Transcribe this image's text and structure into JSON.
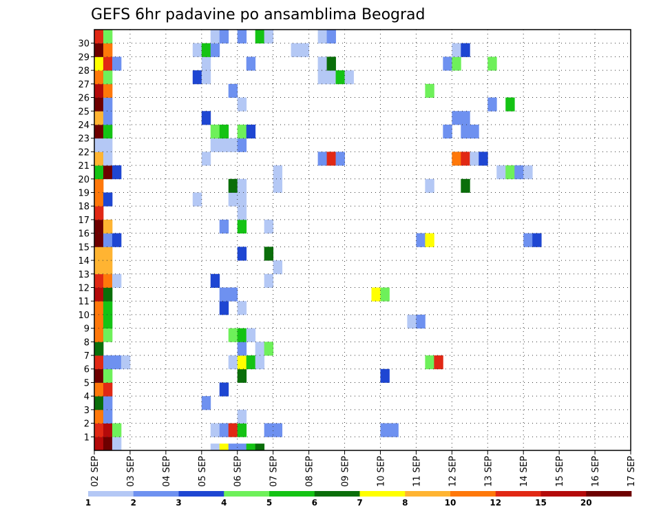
{
  "chart_data": {
    "type": "heatmap",
    "title": "GEFS 6hr padavine po ansamblima Beograd",
    "x_tick_labels": [
      "02 SEP",
      "03 SEP",
      "04 SEP",
      "05 SEP",
      "06 SEP",
      "07 SEP",
      "08 SEP",
      "09 SEP",
      "10 SEP",
      "11 SEP",
      "12 SEP",
      "13 SEP",
      "14 SEP",
      "15 SEP",
      "16 SEP",
      "17 SEP"
    ],
    "y_tick_labels": [
      "1",
      "2",
      "3",
      "4",
      "5",
      "6",
      "7",
      "8",
      "9",
      "10",
      "11",
      "12",
      "13",
      "14",
      "15",
      "16",
      "17",
      "18",
      "19",
      "20",
      "21",
      "22",
      "23",
      "24",
      "25",
      "26",
      "27",
      "28",
      "29",
      "30"
    ],
    "time_steps_per_day": 4,
    "xlim": [
      0,
      60
    ],
    "ylim": [
      0,
      30
    ],
    "grid": "dotted",
    "colorbar": {
      "position": "bottom",
      "labels": [
        "1",
        "2",
        "3",
        "4",
        "5",
        "6",
        "7",
        "8",
        "10",
        "12",
        "15",
        "20"
      ],
      "colors": [
        "#b4c8f5",
        "#6e91f0",
        "#1e46d2",
        "#6ef05a",
        "#14c314",
        "#0a6e0a",
        "#ffff00",
        "#ffb432",
        "#ff780a",
        "#e12814",
        "#b40a0a",
        "#6e0000"
      ]
    },
    "bins": [
      "1",
      "2",
      "3",
      "4",
      "5",
      "6",
      "7",
      "8",
      "10",
      "12",
      "15",
      "20"
    ],
    "cells": [
      [
        0,
        0,
        10
      ],
      [
        1,
        0,
        11
      ],
      [
        2,
        0,
        0
      ],
      [
        0,
        1,
        9
      ],
      [
        1,
        1,
        10
      ],
      [
        2,
        1,
        3
      ],
      [
        13,
        1,
        0
      ],
      [
        14,
        1,
        1
      ],
      [
        15,
        1,
        9
      ],
      [
        16,
        1,
        4
      ],
      [
        19,
        1,
        1
      ],
      [
        20,
        1,
        1
      ],
      [
        32,
        1,
        1
      ],
      [
        33,
        1,
        1
      ],
      [
        0,
        2,
        8
      ],
      [
        1,
        2,
        1
      ],
      [
        16,
        2,
        0
      ],
      [
        0,
        3,
        5
      ],
      [
        1,
        3,
        1
      ],
      [
        12,
        3,
        1
      ],
      [
        0,
        4,
        8
      ],
      [
        1,
        4,
        9
      ],
      [
        14,
        4,
        2
      ],
      [
        0,
        5,
        11
      ],
      [
        1,
        5,
        3
      ],
      [
        16,
        5,
        5
      ],
      [
        32,
        5,
        2
      ],
      [
        0,
        6,
        9
      ],
      [
        1,
        6,
        1
      ],
      [
        2,
        6,
        1
      ],
      [
        3,
        6,
        0
      ],
      [
        15,
        6,
        0
      ],
      [
        16,
        6,
        6
      ],
      [
        17,
        6,
        4
      ],
      [
        18,
        6,
        0
      ],
      [
        37,
        6,
        3
      ],
      [
        38,
        6,
        9
      ],
      [
        0,
        7,
        5
      ],
      [
        16,
        7,
        1
      ],
      [
        18,
        7,
        0
      ],
      [
        19,
        7,
        3
      ],
      [
        0,
        8,
        8
      ],
      [
        1,
        8,
        3
      ],
      [
        15,
        8,
        3
      ],
      [
        16,
        8,
        4
      ],
      [
        17,
        8,
        0
      ],
      [
        0,
        9,
        8
      ],
      [
        1,
        9,
        4
      ],
      [
        35,
        9,
        0
      ],
      [
        36,
        9,
        1
      ],
      [
        0,
        10,
        8
      ],
      [
        1,
        10,
        4
      ],
      [
        14,
        10,
        2
      ],
      [
        16,
        10,
        0
      ],
      [
        0,
        11,
        10
      ],
      [
        1,
        11,
        5
      ],
      [
        14,
        11,
        1
      ],
      [
        15,
        11,
        1
      ],
      [
        31,
        11,
        6
      ],
      [
        32,
        11,
        3
      ],
      [
        0,
        12,
        9
      ],
      [
        1,
        12,
        8
      ],
      [
        2,
        12,
        0
      ],
      [
        13,
        12,
        2
      ],
      [
        19,
        12,
        0
      ],
      [
        0,
        13,
        7
      ],
      [
        1,
        13,
        7
      ],
      [
        20,
        13,
        0
      ],
      [
        0,
        14,
        7
      ],
      [
        1,
        14,
        7
      ],
      [
        16,
        14,
        2
      ],
      [
        19,
        14,
        5
      ],
      [
        0,
        15,
        11
      ],
      [
        1,
        15,
        1
      ],
      [
        2,
        15,
        2
      ],
      [
        36,
        15,
        1
      ],
      [
        37,
        15,
        6
      ],
      [
        48,
        15,
        1
      ],
      [
        49,
        15,
        2
      ],
      [
        0,
        16,
        11
      ],
      [
        1,
        16,
        7
      ],
      [
        14,
        16,
        1
      ],
      [
        16,
        16,
        4
      ],
      [
        19,
        16,
        0
      ],
      [
        0,
        17,
        9
      ],
      [
        16,
        17,
        0
      ],
      [
        0,
        18,
        8
      ],
      [
        1,
        18,
        2
      ],
      [
        11,
        18,
        0
      ],
      [
        15,
        18,
        0
      ],
      [
        16,
        18,
        0
      ],
      [
        0,
        19,
        8
      ],
      [
        15,
        19,
        5
      ],
      [
        16,
        19,
        0
      ],
      [
        20,
        19,
        0
      ],
      [
        37,
        19,
        0
      ],
      [
        41,
        19,
        5
      ],
      [
        0,
        20,
        4
      ],
      [
        1,
        20,
        11
      ],
      [
        2,
        20,
        2
      ],
      [
        20,
        20,
        0
      ],
      [
        45,
        20,
        0
      ],
      [
        46,
        20,
        3
      ],
      [
        47,
        20,
        1
      ],
      [
        48,
        20,
        0
      ],
      [
        0,
        21,
        7
      ],
      [
        1,
        21,
        0
      ],
      [
        12,
        21,
        0
      ],
      [
        25,
        21,
        1
      ],
      [
        26,
        21,
        9
      ],
      [
        27,
        21,
        1
      ],
      [
        40,
        21,
        8
      ],
      [
        41,
        21,
        9
      ],
      [
        42,
        21,
        0
      ],
      [
        43,
        21,
        2
      ],
      [
        0,
        22,
        0
      ],
      [
        1,
        22,
        0
      ],
      [
        13,
        22,
        0
      ],
      [
        14,
        22,
        0
      ],
      [
        15,
        22,
        0
      ],
      [
        16,
        22,
        1
      ],
      [
        0,
        23,
        11
      ],
      [
        1,
        23,
        4
      ],
      [
        13,
        23,
        3
      ],
      [
        14,
        23,
        4
      ],
      [
        16,
        23,
        3
      ],
      [
        17,
        23,
        2
      ],
      [
        39,
        23,
        1
      ],
      [
        41,
        23,
        1
      ],
      [
        42,
        23,
        1
      ],
      [
        0,
        24,
        7
      ],
      [
        1,
        24,
        1
      ],
      [
        12,
        24,
        2
      ],
      [
        40,
        24,
        1
      ],
      [
        41,
        24,
        1
      ],
      [
        0,
        25,
        11
      ],
      [
        1,
        25,
        1
      ],
      [
        16,
        25,
        0
      ],
      [
        44,
        25,
        1
      ],
      [
        46,
        25,
        4
      ],
      [
        0,
        26,
        10
      ],
      [
        1,
        26,
        8
      ],
      [
        15,
        26,
        1
      ],
      [
        37,
        26,
        3
      ],
      [
        0,
        27,
        8
      ],
      [
        1,
        27,
        3
      ],
      [
        11,
        27,
        2
      ],
      [
        12,
        27,
        0
      ],
      [
        25,
        27,
        0
      ],
      [
        26,
        27,
        0
      ],
      [
        27,
        27,
        4
      ],
      [
        28,
        27,
        0
      ],
      [
        0,
        28,
        6
      ],
      [
        1,
        28,
        9
      ],
      [
        2,
        28,
        1
      ],
      [
        12,
        28,
        0
      ],
      [
        17,
        28,
        1
      ],
      [
        25,
        28,
        0
      ],
      [
        26,
        28,
        5
      ],
      [
        39,
        28,
        1
      ],
      [
        40,
        28,
        3
      ],
      [
        44,
        28,
        3
      ],
      [
        0,
        29,
        11
      ],
      [
        1,
        29,
        8
      ],
      [
        11,
        29,
        0
      ],
      [
        12,
        29,
        4
      ],
      [
        13,
        29,
        1
      ],
      [
        22,
        29,
        0
      ],
      [
        23,
        29,
        0
      ],
      [
        40,
        29,
        0
      ],
      [
        41,
        29,
        2
      ],
      [
        0,
        30,
        9
      ],
      [
        1,
        30,
        3
      ],
      [
        13,
        30,
        0
      ],
      [
        14,
        30,
        1
      ],
      [
        16,
        30,
        1
      ],
      [
        18,
        30,
        4
      ],
      [
        19,
        30,
        0
      ],
      [
        25,
        30,
        0
      ],
      [
        26,
        30,
        1
      ]
    ],
    "bottom_row_cells": [
      [
        13,
        0
      ],
      [
        14,
        6
      ],
      [
        15,
        1
      ],
      [
        16,
        1
      ],
      [
        17,
        4
      ],
      [
        18,
        5
      ]
    ]
  }
}
